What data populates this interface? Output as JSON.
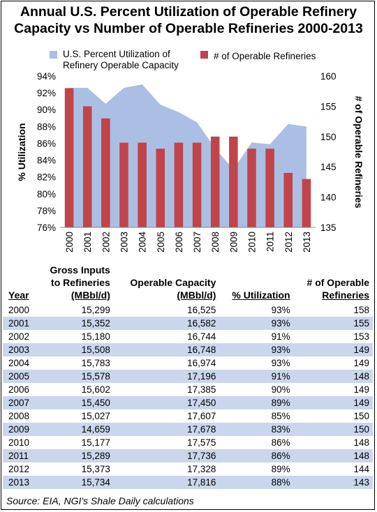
{
  "title_line1": "Annual U.S. Percent Utilization of Operable Refinery",
  "title_line2": "Capacity vs Number of Operable Refineries 2000-2013",
  "colors": {
    "area": "#aabfe3",
    "bar": "#c0444a",
    "band": "#c9d6ec"
  },
  "chart_data": {
    "type": "bar",
    "categories": [
      "2000",
      "2001",
      "2002",
      "2003",
      "2004",
      "2005",
      "2006",
      "2007",
      "2008",
      "2009",
      "2010",
      "2011",
      "2012",
      "2013"
    ],
    "series": [
      {
        "name": "U.S. Percent Utilization of Refinery Operable Capacity",
        "type": "area",
        "axis": "left",
        "values": [
          92.6,
          92.6,
          90.7,
          92.6,
          93.0,
          90.6,
          89.7,
          88.5,
          85.4,
          82.9,
          86.1,
          85.9,
          88.3,
          88.0
        ]
      },
      {
        "name": "# of Operable Refineries",
        "type": "bar",
        "axis": "right",
        "values": [
          158,
          155,
          153,
          149,
          149,
          148,
          149,
          149,
          150,
          150,
          148,
          148,
          144,
          143
        ]
      }
    ],
    "legend": [
      "U.S. Percent Utilization of",
      "Refinery Operable Capacity",
      "# of Operable Refineries"
    ],
    "ylabel": "% Utilization",
    "y2label": "# of Operable Refineries",
    "ylim": [
      76,
      94
    ],
    "y2lim": [
      135,
      160
    ],
    "yticks": [
      "94%",
      "92%",
      "90%",
      "88%",
      "86%",
      "84%",
      "82%",
      "80%",
      "78%",
      "76%"
    ],
    "y2ticks": [
      "160",
      "155",
      "150",
      "145",
      "140",
      "135"
    ],
    "legend_position": "top"
  },
  "table": {
    "headers": [
      {
        "line1": "",
        "line2": "Year"
      },
      {
        "line1": "Gross Inputs",
        "line2": "to Refineries",
        "line3": "(MBbl/d)"
      },
      {
        "line1": "",
        "line2": "Operable Capacity",
        "line3": "(MBbl/d)"
      },
      {
        "line1": "",
        "line2": "% Utilization"
      },
      {
        "line1": "# of Operable",
        "line2": "Refineries"
      }
    ],
    "rows": [
      [
        "2000",
        "15,299",
        "16,525",
        "93%",
        "158"
      ],
      [
        "2001",
        "15,352",
        "16,582",
        "93%",
        "155"
      ],
      [
        "2002",
        "15,180",
        "16,744",
        "91%",
        "153"
      ],
      [
        "2003",
        "15,508",
        "16,748",
        "93%",
        "149"
      ],
      [
        "2004",
        "15,783",
        "16,974",
        "93%",
        "149"
      ],
      [
        "2005",
        "15,578",
        "17,196",
        "91%",
        "148"
      ],
      [
        "2006",
        "15,602",
        "17,385",
        "90%",
        "149"
      ],
      [
        "2007",
        "15,450",
        "17,450",
        "89%",
        "149"
      ],
      [
        "2008",
        "15,027",
        "17,607",
        "85%",
        "150"
      ],
      [
        "2009",
        "14,659",
        "17,678",
        "83%",
        "150"
      ],
      [
        "2010",
        "15,177",
        "17,575",
        "86%",
        "148"
      ],
      [
        "2011",
        "15,289",
        "17,736",
        "86%",
        "148"
      ],
      [
        "2012",
        "15,373",
        "17,328",
        "89%",
        "144"
      ],
      [
        "2013",
        "15,734",
        "17,816",
        "88%",
        "143"
      ]
    ]
  },
  "source": "Source: EIA, NGI's Shale Daily calculations"
}
